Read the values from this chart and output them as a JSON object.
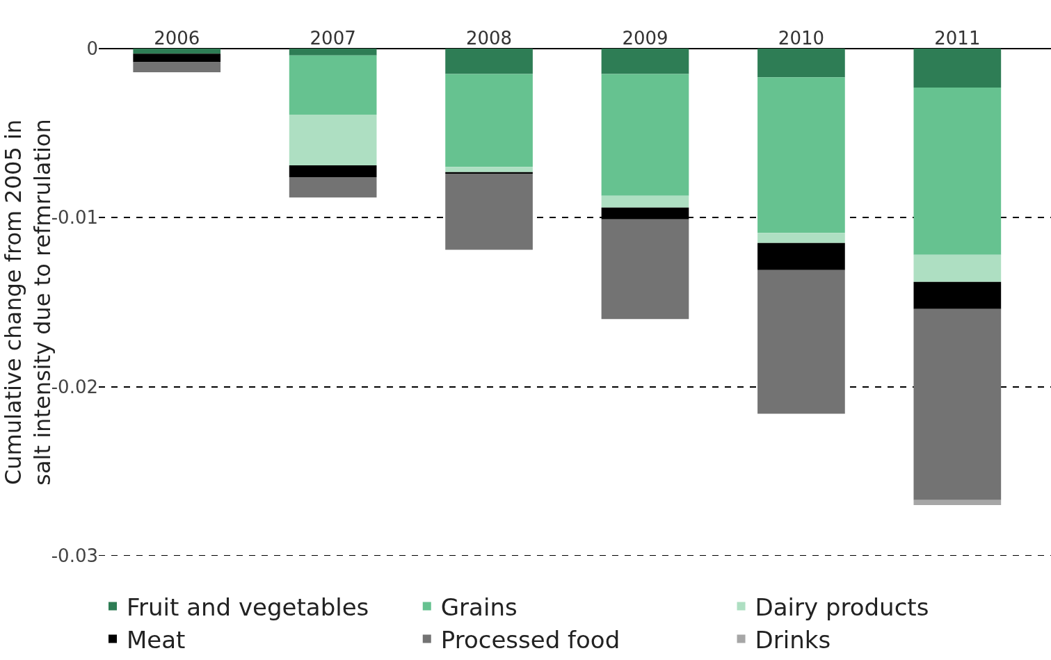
{
  "chart_data": {
    "type": "bar",
    "stacked": true,
    "ylabel": "Cumulative change from 2005 in\nsalt intensity due to refmrulation",
    "categories": [
      "2006",
      "2007",
      "2008",
      "2009",
      "2010",
      "2011"
    ],
    "series": [
      {
        "name": "Fruit and vegetables",
        "color": "#2e7d55",
        "values": [
          -0.0003,
          -0.0004,
          -0.0015,
          -0.0015,
          -0.0017,
          -0.0023
        ]
      },
      {
        "name": "Grains",
        "color": "#66c290",
        "values": [
          0,
          -0.0035,
          -0.0055,
          -0.0072,
          -0.0092,
          -0.0099
        ]
      },
      {
        "name": "Dairy products",
        "color": "#aedfc2",
        "values": [
          0,
          -0.003,
          -0.0003,
          -0.0007,
          -0.0006,
          -0.0016
        ]
      },
      {
        "name": "Meat",
        "color": "#000000",
        "values": [
          -0.0005,
          -0.0007,
          -0.0001,
          -0.0007,
          -0.0016,
          -0.0016
        ]
      },
      {
        "name": "Processed food",
        "color": "#737373",
        "values": [
          -0.0006,
          -0.0012,
          -0.0045,
          -0.0059,
          -0.0085,
          -0.0113
        ]
      },
      {
        "name": "Drinks",
        "color": "#a6a6a6",
        "values": [
          0,
          0,
          0,
          0,
          0,
          -0.0003
        ]
      }
    ],
    "ylim": [
      -0.03,
      0
    ],
    "yticks": [
      0,
      -0.01,
      -0.02,
      -0.03
    ],
    "grid": "y",
    "legend": "bottom"
  }
}
